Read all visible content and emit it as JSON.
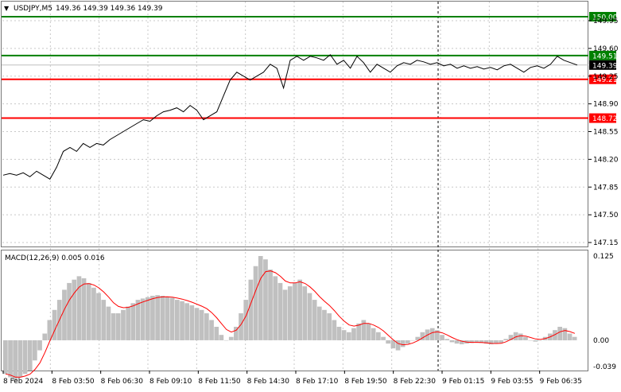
{
  "header": {
    "menu_icon": "triangle-down-icon",
    "title": "USDJPY,M5",
    "ohlc": "149.36 149.39 149.36 149.39"
  },
  "macd": {
    "label": "MACD(12,26,9) 0.005 0.016",
    "axis_labels": [
      "0.125",
      "0.00",
      "-0.039"
    ],
    "histogram_values": [
      -0.05,
      -0.055,
      -0.06,
      -0.055,
      -0.05,
      -0.045,
      -0.03,
      -0.015,
      0.01,
      0.03,
      0.045,
      0.06,
      0.075,
      0.085,
      0.09,
      0.095,
      0.092,
      0.085,
      0.078,
      0.07,
      0.06,
      0.05,
      0.04,
      0.04,
      0.045,
      0.05,
      0.055,
      0.06,
      0.062,
      0.064,
      0.066,
      0.067,
      0.066,
      0.065,
      0.063,
      0.06,
      0.058,
      0.055,
      0.052,
      0.048,
      0.045,
      0.04,
      0.03,
      0.02,
      0.008,
      0.0,
      0.005,
      0.02,
      0.04,
      0.06,
      0.09,
      0.11,
      0.125,
      0.12,
      0.105,
      0.095,
      0.085,
      0.075,
      0.08,
      0.085,
      0.09,
      0.08,
      0.07,
      0.06,
      0.05,
      0.045,
      0.04,
      0.03,
      0.02,
      0.015,
      0.012,
      0.018,
      0.025,
      0.03,
      0.025,
      0.018,
      0.012,
      0.005,
      -0.005,
      -0.012,
      -0.015,
      -0.01,
      -0.005,
      0.0,
      0.005,
      0.012,
      0.016,
      0.018,
      0.015,
      0.008,
      0.002,
      -0.003,
      -0.005,
      -0.006,
      -0.005,
      -0.004,
      -0.003,
      -0.004,
      -0.005,
      -0.006,
      -0.005,
      -0.004,
      0.002,
      0.008,
      0.012,
      0.01,
      0.005,
      0.0,
      -0.002,
      0.0,
      0.005,
      0.01,
      0.015,
      0.02,
      0.018,
      0.01,
      0.005
    ]
  },
  "price_axis": {
    "ticks": [
      "149.95",
      "149.60",
      "149.25",
      "148.90",
      "148.55",
      "148.20",
      "147.85",
      "147.50",
      "147.15"
    ]
  },
  "levels": [
    {
      "price": "150.00",
      "color": "#008000"
    },
    {
      "price": "149.51",
      "color": "#008000"
    },
    {
      "price": "149.21",
      "color": "#ff0000"
    },
    {
      "price": "148.72",
      "color": "#ff0000"
    }
  ],
  "current_price": "149.39",
  "time_axis": {
    "labels": [
      "8 Feb 2024",
      "8 Feb 03:50",
      "8 Feb 06:30",
      "8 Feb 09:10",
      "8 Feb 11:50",
      "8 Feb 14:30",
      "8 Feb 17:10",
      "8 Feb 19:50",
      "8 Feb 22:30",
      "9 Feb 01:15",
      "9 Feb 03:55",
      "9 Feb 06:35"
    ]
  },
  "price_series": [
    148.0,
    148.02,
    148.0,
    148.03,
    147.98,
    148.05,
    148.0,
    147.95,
    148.1,
    148.3,
    148.35,
    148.3,
    148.4,
    148.35,
    148.4,
    148.38,
    148.45,
    148.5,
    148.55,
    148.6,
    148.65,
    148.7,
    148.68,
    148.75,
    148.8,
    148.82,
    148.85,
    148.8,
    148.88,
    148.82,
    148.7,
    148.75,
    148.8,
    149.0,
    149.2,
    149.3,
    149.25,
    149.2,
    149.25,
    149.3,
    149.4,
    149.35,
    149.1,
    149.45,
    149.5,
    149.45,
    149.5,
    149.48,
    149.45,
    149.52,
    149.4,
    149.45,
    149.35,
    149.5,
    149.42,
    149.3,
    149.4,
    149.35,
    149.3,
    149.38,
    149.42,
    149.4,
    149.45,
    149.43,
    149.4,
    149.42,
    149.38,
    149.4,
    149.35,
    149.38,
    149.35,
    149.37,
    149.34,
    149.36,
    149.33,
    149.38,
    149.4,
    149.35,
    149.3,
    149.36,
    149.38,
    149.35,
    149.4,
    149.5,
    149.45,
    149.42,
    149.39
  ],
  "colors": {
    "green_level": "#008000",
    "red_level": "#ff0000",
    "price_line": "#000000",
    "macd_hist": "#c0c0c0",
    "macd_signal": "#ff0000",
    "current_price_bg": "#000000"
  }
}
